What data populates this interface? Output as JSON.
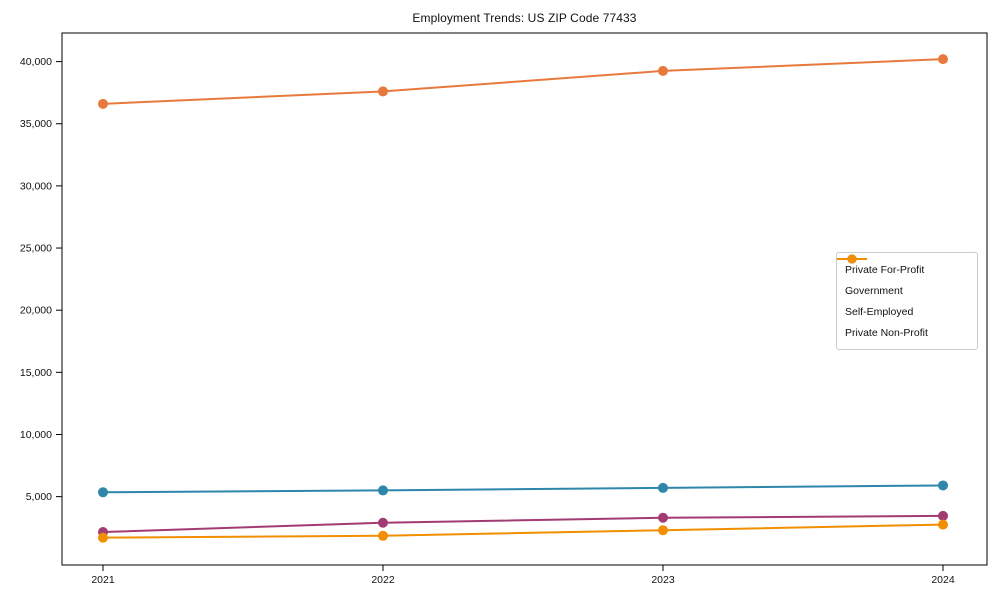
{
  "chart_data": {
    "type": "line",
    "title": "Employment Trends: US ZIP Code 77433",
    "xlabel": "",
    "ylabel": "",
    "x": [
      "2021",
      "2022",
      "2023",
      "2024"
    ],
    "series": [
      {
        "name": "Private For-Profit",
        "color": "#E8793D",
        "values": [
          36600,
          37600,
          39250,
          40200
        ]
      },
      {
        "name": "Government",
        "color": "#2E86AB",
        "values": [
          5350,
          5500,
          5700,
          5900
        ]
      },
      {
        "name": "Self-Employed",
        "color": "#A23B72",
        "values": [
          2150,
          2900,
          3300,
          3450
        ]
      },
      {
        "name": "Private Non-Profit",
        "color": "#F18F01",
        "values": [
          1700,
          1850,
          2300,
          2750
        ]
      }
    ],
    "yticks": [
      5000,
      10000,
      15000,
      20000,
      25000,
      30000,
      35000,
      40000
    ],
    "ytick_labels": [
      "5,000",
      "10,000",
      "15,000",
      "20,000",
      "25,000",
      "30,000",
      "35,000",
      "40,000"
    ],
    "ylim": [
      -500,
      42300
    ],
    "grid": false,
    "legend_position": "center right",
    "marker": "o"
  }
}
